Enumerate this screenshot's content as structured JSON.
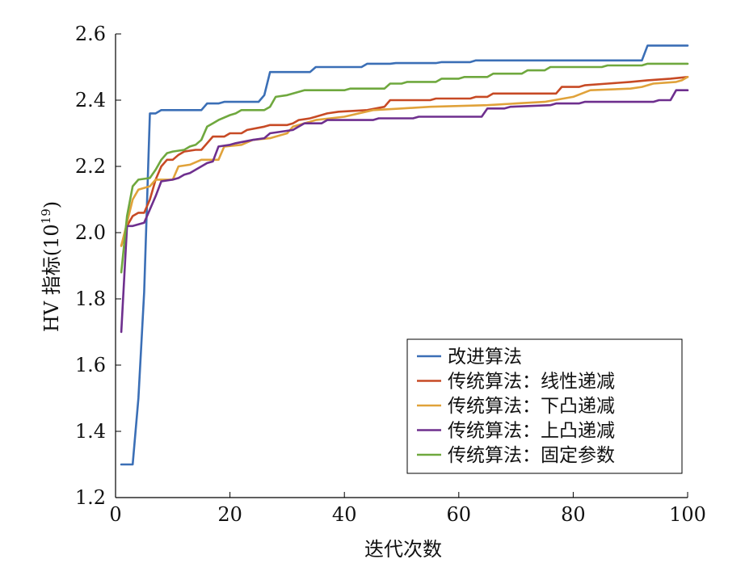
{
  "chart_data": {
    "type": "line",
    "xlabel": "迭代次数",
    "ylabel": "HV 指标(10",
    "ylabel_sup": "19",
    "ylabel_close": ")",
    "xlim": [
      0,
      100
    ],
    "ylim": [
      1.2,
      2.6
    ],
    "xticks": [
      0,
      20,
      40,
      60,
      80,
      100
    ],
    "yticks": [
      1.2,
      1.4,
      1.6,
      1.8,
      2.0,
      2.2,
      2.4,
      2.6
    ],
    "ytick_labels": [
      "1.2",
      "1.4",
      "1.6",
      "1.8",
      "2.0",
      "2.2",
      "2.4",
      "2.6"
    ],
    "grid": false,
    "legend_position": "bottom-right",
    "series": [
      {
        "name": "改进算法",
        "color": "#3b6fb6",
        "points": [
          [
            1,
            1.3
          ],
          [
            3,
            1.3
          ],
          [
            4,
            1.5
          ],
          [
            5,
            1.82
          ],
          [
            6,
            2.36
          ],
          [
            7,
            2.36
          ],
          [
            8,
            2.37
          ],
          [
            15,
            2.37
          ],
          [
            16,
            2.39
          ],
          [
            18,
            2.39
          ],
          [
            19,
            2.395
          ],
          [
            25,
            2.395
          ],
          [
            26,
            2.415
          ],
          [
            27,
            2.485
          ],
          [
            34,
            2.485
          ],
          [
            35,
            2.5
          ],
          [
            43,
            2.5
          ],
          [
            44,
            2.51
          ],
          [
            48,
            2.51
          ],
          [
            49,
            2.512
          ],
          [
            56,
            2.512
          ],
          [
            57,
            2.515
          ],
          [
            62,
            2.515
          ],
          [
            63,
            2.52
          ],
          [
            92,
            2.52
          ],
          [
            93,
            2.565
          ],
          [
            100,
            2.565
          ]
        ]
      },
      {
        "name": "传统算法：线性递减",
        "color": "#c74a25",
        "points": [
          [
            1,
            1.96
          ],
          [
            2,
            2.02
          ],
          [
            3,
            2.05
          ],
          [
            4,
            2.06
          ],
          [
            5,
            2.06
          ],
          [
            6,
            2.1
          ],
          [
            7,
            2.16
          ],
          [
            8,
            2.2
          ],
          [
            9,
            2.22
          ],
          [
            10,
            2.22
          ],
          [
            11,
            2.235
          ],
          [
            12,
            2.245
          ],
          [
            14,
            2.25
          ],
          [
            15,
            2.25
          ],
          [
            16,
            2.27
          ],
          [
            17,
            2.29
          ],
          [
            19,
            2.29
          ],
          [
            20,
            2.3
          ],
          [
            22,
            2.3
          ],
          [
            23,
            2.31
          ],
          [
            26,
            2.32
          ],
          [
            27,
            2.325
          ],
          [
            30,
            2.325
          ],
          [
            31,
            2.33
          ],
          [
            32,
            2.34
          ],
          [
            34,
            2.345
          ],
          [
            35,
            2.35
          ],
          [
            37,
            2.36
          ],
          [
            39,
            2.365
          ],
          [
            44,
            2.37
          ],
          [
            47,
            2.38
          ],
          [
            48,
            2.4
          ],
          [
            55,
            2.4
          ],
          [
            56,
            2.405
          ],
          [
            62,
            2.405
          ],
          [
            63,
            2.41
          ],
          [
            65,
            2.41
          ],
          [
            66,
            2.42
          ],
          [
            77,
            2.42
          ],
          [
            78,
            2.44
          ],
          [
            81,
            2.44
          ],
          [
            82,
            2.445
          ],
          [
            86,
            2.45
          ],
          [
            90,
            2.455
          ],
          [
            93,
            2.46
          ],
          [
            97,
            2.465
          ],
          [
            100,
            2.47
          ]
        ]
      },
      {
        "name": "传统算法：下凸递减",
        "color": "#e0a23a",
        "points": [
          [
            1,
            1.96
          ],
          [
            2,
            2.03
          ],
          [
            3,
            2.1
          ],
          [
            4,
            2.13
          ],
          [
            6,
            2.14
          ],
          [
            7,
            2.16
          ],
          [
            9,
            2.16
          ],
          [
            10,
            2.16
          ],
          [
            11,
            2.2
          ],
          [
            13,
            2.205
          ],
          [
            15,
            2.22
          ],
          [
            18,
            2.22
          ],
          [
            19,
            2.26
          ],
          [
            22,
            2.265
          ],
          [
            24,
            2.28
          ],
          [
            27,
            2.285
          ],
          [
            30,
            2.3
          ],
          [
            31,
            2.32
          ],
          [
            33,
            2.33
          ],
          [
            35,
            2.34
          ],
          [
            40,
            2.35
          ],
          [
            45,
            2.37
          ],
          [
            50,
            2.375
          ],
          [
            55,
            2.38
          ],
          [
            65,
            2.385
          ],
          [
            70,
            2.39
          ],
          [
            75,
            2.395
          ],
          [
            80,
            2.41
          ],
          [
            83,
            2.43
          ],
          [
            90,
            2.435
          ],
          [
            92,
            2.44
          ],
          [
            94,
            2.45
          ],
          [
            98,
            2.455
          ],
          [
            99,
            2.46
          ],
          [
            100,
            2.47
          ]
        ]
      },
      {
        "name": "传统算法：上凸递减",
        "color": "#6e2f8e",
        "points": [
          [
            1,
            1.7
          ],
          [
            2,
            2.02
          ],
          [
            3,
            2.02
          ],
          [
            4,
            2.025
          ],
          [
            5,
            2.03
          ],
          [
            6,
            2.07
          ],
          [
            7,
            2.11
          ],
          [
            8,
            2.155
          ],
          [
            10,
            2.16
          ],
          [
            11,
            2.165
          ],
          [
            12,
            2.175
          ],
          [
            13,
            2.18
          ],
          [
            14,
            2.19
          ],
          [
            15,
            2.2
          ],
          [
            16,
            2.21
          ],
          [
            17,
            2.215
          ],
          [
            18,
            2.26
          ],
          [
            20,
            2.265
          ],
          [
            21,
            2.27
          ],
          [
            24,
            2.28
          ],
          [
            26,
            2.285
          ],
          [
            27,
            2.3
          ],
          [
            31,
            2.31
          ],
          [
            32,
            2.32
          ],
          [
            33,
            2.33
          ],
          [
            36,
            2.33
          ],
          [
            37,
            2.34
          ],
          [
            45,
            2.34
          ],
          [
            46,
            2.345
          ],
          [
            52,
            2.345
          ],
          [
            53,
            2.35
          ],
          [
            64,
            2.35
          ],
          [
            65,
            2.375
          ],
          [
            68,
            2.375
          ],
          [
            69,
            2.38
          ],
          [
            76,
            2.385
          ],
          [
            77,
            2.39
          ],
          [
            81,
            2.39
          ],
          [
            82,
            2.395
          ],
          [
            94,
            2.395
          ],
          [
            95,
            2.4
          ],
          [
            97,
            2.4
          ],
          [
            98,
            2.43
          ],
          [
            100,
            2.43
          ]
        ]
      },
      {
        "name": "传统算法：固定参数",
        "color": "#6fa83e",
        "points": [
          [
            1,
            1.88
          ],
          [
            2,
            2.05
          ],
          [
            3,
            2.14
          ],
          [
            4,
            2.16
          ],
          [
            6,
            2.165
          ],
          [
            7,
            2.19
          ],
          [
            8,
            2.22
          ],
          [
            9,
            2.24
          ],
          [
            10,
            2.245
          ],
          [
            12,
            2.25
          ],
          [
            13,
            2.26
          ],
          [
            14,
            2.265
          ],
          [
            15,
            2.28
          ],
          [
            16,
            2.32
          ],
          [
            17,
            2.33
          ],
          [
            18,
            2.34
          ],
          [
            20,
            2.355
          ],
          [
            21,
            2.36
          ],
          [
            22,
            2.37
          ],
          [
            26,
            2.37
          ],
          [
            27,
            2.38
          ],
          [
            28,
            2.41
          ],
          [
            30,
            2.415
          ],
          [
            31,
            2.42
          ],
          [
            32,
            2.425
          ],
          [
            33,
            2.43
          ],
          [
            40,
            2.43
          ],
          [
            41,
            2.435
          ],
          [
            47,
            2.435
          ],
          [
            48,
            2.45
          ],
          [
            50,
            2.45
          ],
          [
            51,
            2.455
          ],
          [
            56,
            2.455
          ],
          [
            57,
            2.465
          ],
          [
            60,
            2.465
          ],
          [
            61,
            2.47
          ],
          [
            65,
            2.47
          ],
          [
            66,
            2.48
          ],
          [
            71,
            2.48
          ],
          [
            72,
            2.49
          ],
          [
            75,
            2.49
          ],
          [
            76,
            2.5
          ],
          [
            85,
            2.5
          ],
          [
            86,
            2.505
          ],
          [
            92,
            2.505
          ],
          [
            93,
            2.51
          ],
          [
            100,
            2.51
          ]
        ]
      }
    ]
  }
}
